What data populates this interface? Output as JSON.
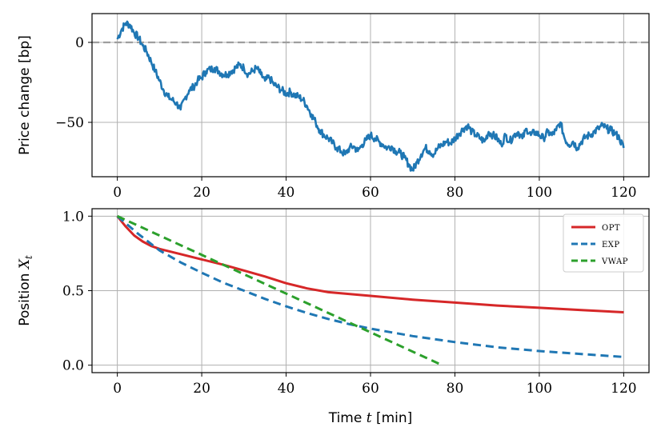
{
  "chart_data": [
    {
      "type": "line",
      "ylabel": "Price change [bp]",
      "xlim": [
        -6,
        126
      ],
      "ylim": [
        -84,
        18
      ],
      "xticks": [
        0,
        20,
        40,
        60,
        80,
        100,
        120
      ],
      "yticks": [
        0,
        -50
      ],
      "ytick_labels": [
        "0",
        "−50"
      ],
      "grid": true,
      "reference_line": {
        "y": 0,
        "style": "dashed",
        "color": "#9e9e9e"
      },
      "series": [
        {
          "color": "#1f77b4",
          "x": [
            0,
            1,
            2,
            3,
            4,
            5,
            6,
            7,
            8,
            9,
            10,
            11,
            12,
            13,
            14,
            15,
            16,
            17,
            18,
            19,
            20,
            21,
            22,
            23,
            24,
            25,
            26,
            27,
            28,
            29,
            30,
            31,
            32,
            33,
            34,
            35,
            36,
            37,
            38,
            39,
            40,
            41,
            42,
            43,
            44,
            45,
            46,
            47,
            48,
            49,
            50,
            51,
            52,
            53,
            54,
            55,
            56,
            57,
            58,
            59,
            60,
            61,
            62,
            63,
            64,
            65,
            66,
            67,
            68,
            69,
            70,
            71,
            72,
            73,
            74,
            75,
            76,
            77,
            78,
            79,
            80,
            81,
            82,
            83,
            84,
            85,
            86,
            87,
            88,
            89,
            90,
            91,
            92,
            93,
            94,
            95,
            96,
            97,
            98,
            99,
            100,
            101,
            102,
            103,
            104,
            105,
            106,
            107,
            108,
            109,
            110,
            111,
            112,
            113,
            114,
            115,
            116,
            117,
            118,
            119,
            120
          ],
          "values": [
            2,
            8,
            12,
            11,
            6,
            3,
            -2,
            -6,
            -12,
            -18,
            -24,
            -30,
            -34,
            -36,
            -38,
            -42,
            -35,
            -30,
            -28,
            -24,
            -22,
            -18,
            -17,
            -16,
            -18,
            -20,
            -20,
            -18,
            -16,
            -14,
            -16,
            -20,
            -18,
            -16,
            -20,
            -24,
            -22,
            -26,
            -28,
            -30,
            -32,
            -31,
            -33,
            -34,
            -36,
            -40,
            -45,
            -50,
            -55,
            -58,
            -60,
            -63,
            -66,
            -68,
            -70,
            -66,
            -65,
            -68,
            -64,
            -61,
            -58,
            -60,
            -62,
            -64,
            -66,
            -65,
            -68,
            -69,
            -72,
            -76,
            -80,
            -75,
            -70,
            -66,
            -68,
            -70,
            -66,
            -64,
            -62,
            -63,
            -60,
            -57,
            -54,
            -52,
            -56,
            -58,
            -60,
            -62,
            -56,
            -58,
            -60,
            -64,
            -58,
            -62,
            -58,
            -56,
            -60,
            -54,
            -58,
            -56,
            -58,
            -60,
            -56,
            -58,
            -55,
            -50,
            -60,
            -64,
            -62,
            -66,
            -62,
            -59,
            -58,
            -56,
            -54,
            -52,
            -54,
            -55,
            -57,
            -60,
            -66
          ]
        }
      ]
    },
    {
      "type": "line",
      "xlabel": "Time $t$ [min]",
      "ylabel": "Position $X_t$",
      "xlim": [
        -6,
        126
      ],
      "ylim": [
        -0.05,
        1.05
      ],
      "xticks": [
        0,
        20,
        40,
        60,
        80,
        100,
        120
      ],
      "yticks": [
        0,
        0.5,
        1.0
      ],
      "ytick_labels": [
        "0.0",
        "0.5",
        "1.0"
      ],
      "grid": true,
      "legend": "top-right",
      "series": [
        {
          "name": "OPT",
          "color": "#d62728",
          "dash": "solid",
          "x": [
            0,
            2,
            4,
            6,
            8,
            10,
            15,
            20,
            25,
            30,
            35,
            40,
            45,
            50,
            60,
            70,
            80,
            90,
            100,
            110,
            120
          ],
          "values": [
            1.0,
            0.93,
            0.87,
            0.83,
            0.8,
            0.78,
            0.745,
            0.71,
            0.675,
            0.635,
            0.595,
            0.55,
            0.515,
            0.49,
            0.465,
            0.44,
            0.42,
            0.4,
            0.385,
            0.37,
            0.355
          ]
        },
        {
          "name": "EXP",
          "color": "#1f77b4",
          "dash": "dashed",
          "x": [
            0,
            5,
            10,
            15,
            20,
            25,
            30,
            35,
            40,
            45,
            50,
            55,
            60,
            70,
            80,
            90,
            100,
            110,
            120
          ],
          "values": [
            1.0,
            0.88,
            0.77,
            0.69,
            0.62,
            0.555,
            0.5,
            0.445,
            0.395,
            0.35,
            0.31,
            0.275,
            0.245,
            0.195,
            0.155,
            0.12,
            0.095,
            0.075,
            0.055
          ]
        },
        {
          "name": "VWAP",
          "color": "#2ca02c",
          "dash": "dashed",
          "x": [
            0,
            77
          ],
          "values": [
            1.0,
            0.0
          ]
        }
      ]
    }
  ]
}
